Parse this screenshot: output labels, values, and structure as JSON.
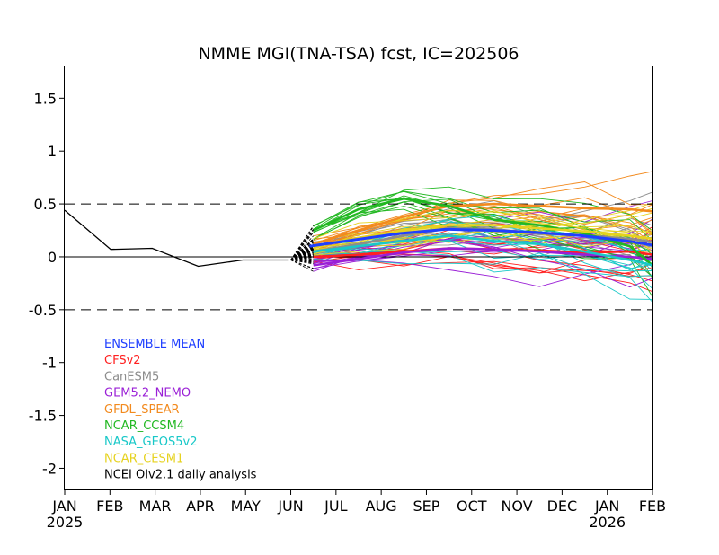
{
  "chart_data": {
    "type": "line",
    "title": "NMME MGI(TNA-TSA) fcst, IC=202506",
    "xlabel": "",
    "ylabel": "",
    "x_ticks": [
      "JAN",
      "FEB",
      "MAR",
      "APR",
      "MAY",
      "JUN",
      "JUL",
      "AUG",
      "SEP",
      "OCT",
      "NOV",
      "DEC",
      "JAN",
      "FEB"
    ],
    "x_tick_years": [
      {
        "index": 0,
        "label": "2025"
      },
      {
        "index": 12,
        "label": "2026"
      }
    ],
    "y_ticks": [
      1.5,
      1,
      0.5,
      0,
      -0.5,
      -1,
      -1.5,
      -2
    ],
    "y_tick_labels": [
      "1.5",
      "1",
      "0.5",
      "0",
      "-0.5",
      "-1",
      "-1.5",
      "-2"
    ],
    "ylim": [
      -2.2,
      1.8
    ],
    "reference_lines": [
      {
        "y": 0.5,
        "style": "dashed"
      },
      {
        "y": -0.5,
        "style": "dashed"
      },
      {
        "y": 0,
        "style": "solid"
      }
    ],
    "legend": {
      "placement": "bottom-left",
      "entries": [
        {
          "label": "ENSEMBLE MEAN",
          "color": "#1f3fff"
        },
        {
          "label": "CFSv2",
          "color": "#ff2020"
        },
        {
          "label": "CanESM5",
          "color": "#8c8c8c"
        },
        {
          "label": "GEM5.2_NEMO",
          "color": "#9a1fd6"
        },
        {
          "label": "GFDL_SPEAR",
          "color": "#f28a1e"
        },
        {
          "label": "NCAR_CCSM4",
          "color": "#22b822"
        },
        {
          "label": "NASA_GEOS5v2",
          "color": "#19c8c8"
        },
        {
          "label": "NCAR_CESM1",
          "color": "#e6d21e"
        },
        {
          "label": "NCEI OIv2.1 daily analysis",
          "color": "#000000"
        }
      ]
    },
    "observed": {
      "x": [
        "2025-01-01",
        "2025-02-01",
        "2025-03-01",
        "2025-04-01",
        "2025-05-01",
        "2025-06-01"
      ],
      "values": [
        0.44,
        0.07,
        0.08,
        -0.09,
        -0.03,
        -0.03
      ]
    },
    "ensemble_mean": {
      "x": [
        "2025-06-15",
        "2025-07-15",
        "2025-08-15",
        "2025-09-15",
        "2025-10-15",
        "2025-11-15",
        "2025-12-15",
        "2026-01-15",
        "2026-02-01"
      ],
      "values": [
        0.1,
        0.16,
        0.22,
        0.26,
        0.25,
        0.23,
        0.2,
        0.15,
        0.11
      ]
    },
    "model_means": [
      {
        "model": "CFSv2",
        "color": "#ff2020",
        "values": [
          0.0,
          0.02,
          0.05,
          0.08,
          0.07,
          0.06,
          0.04,
          0.05,
          0.02
        ]
      },
      {
        "model": "CanESM5",
        "color": "#8c8c8c",
        "values": [
          0.05,
          0.12,
          0.2,
          0.27,
          0.26,
          0.22,
          0.2,
          0.17,
          0.14
        ]
      },
      {
        "model": "GEM5.2_NEMO",
        "color": "#9a1fd6",
        "values": [
          -0.08,
          -0.02,
          0.04,
          0.08,
          0.07,
          0.05,
          0.02,
          0.0,
          -0.02
        ]
      },
      {
        "model": "GFDL_SPEAR",
        "color": "#f28a1e",
        "values": [
          0.12,
          0.25,
          0.38,
          0.48,
          0.5,
          0.48,
          0.46,
          0.45,
          0.43
        ]
      },
      {
        "model": "NCAR_CCSM4",
        "color": "#22b822",
        "values": [
          0.25,
          0.45,
          0.55,
          0.48,
          0.35,
          0.3,
          0.22,
          0.1,
          -0.08
        ]
      },
      {
        "model": "NASA_GEOS5v2",
        "color": "#19c8c8",
        "values": [
          0.05,
          0.1,
          0.15,
          0.2,
          0.15,
          0.12,
          0.05,
          -0.03,
          -0.08
        ]
      },
      {
        "model": "NCAR_CESM1",
        "color": "#e6d21e",
        "values": [
          0.1,
          0.18,
          0.25,
          0.3,
          0.3,
          0.27,
          0.24,
          0.2,
          0.17
        ]
      }
    ]
  }
}
